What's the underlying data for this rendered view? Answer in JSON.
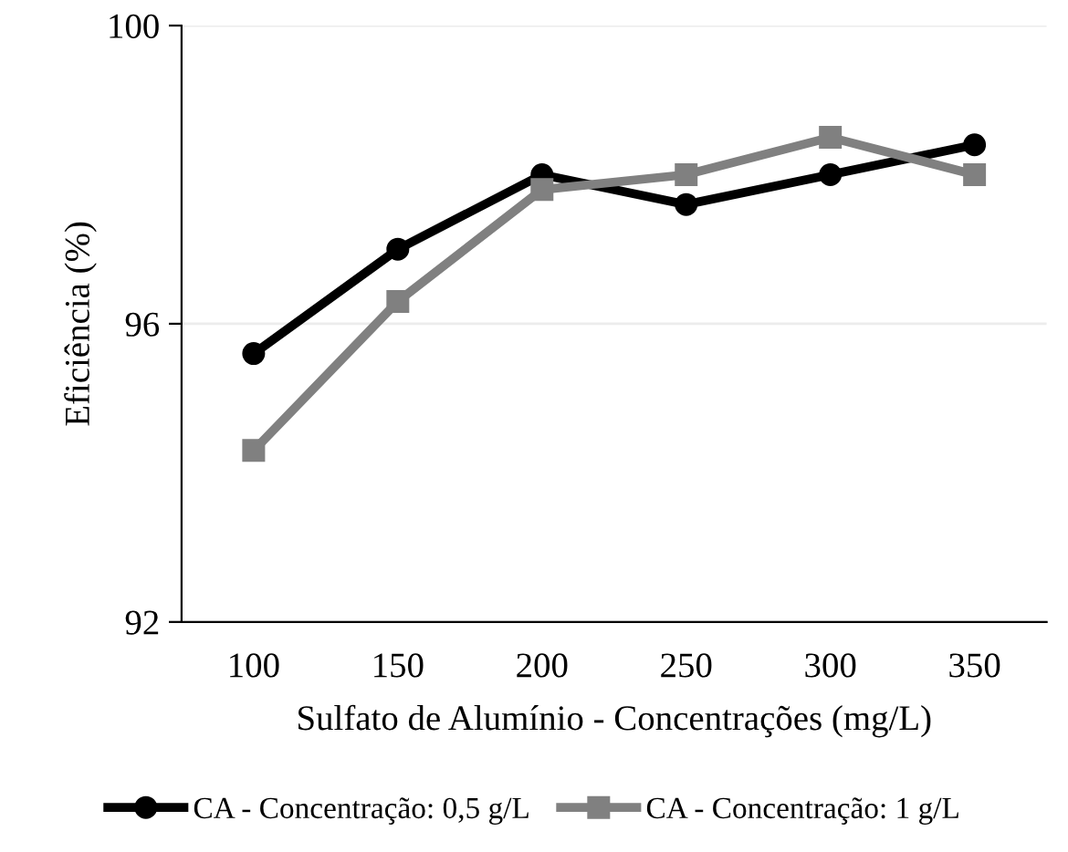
{
  "chart_data": {
    "type": "line",
    "xlabel": "Sulfato de Alumínio - Concentrações (mg/L)",
    "ylabel": "Eficiência (%)",
    "categories": [
      "100",
      "150",
      "200",
      "250",
      "300",
      "350"
    ],
    "series": [
      {
        "name": "CA - Concentração: 0,5 g/L",
        "color": "#000000",
        "marker": "circle",
        "values": [
          95.6,
          97.0,
          98.0,
          97.6,
          98.0,
          98.4
        ]
      },
      {
        "name": "CA - Concentração: 1 g/L",
        "color": "#808080",
        "marker": "square",
        "values": [
          94.3,
          96.3,
          97.8,
          98.0,
          98.5,
          98.0
        ]
      }
    ],
    "ylim": [
      92,
      100
    ],
    "yticks": [
      92,
      96,
      100
    ],
    "grid": "y",
    "legend": "bottom",
    "line_style": "solid"
  }
}
